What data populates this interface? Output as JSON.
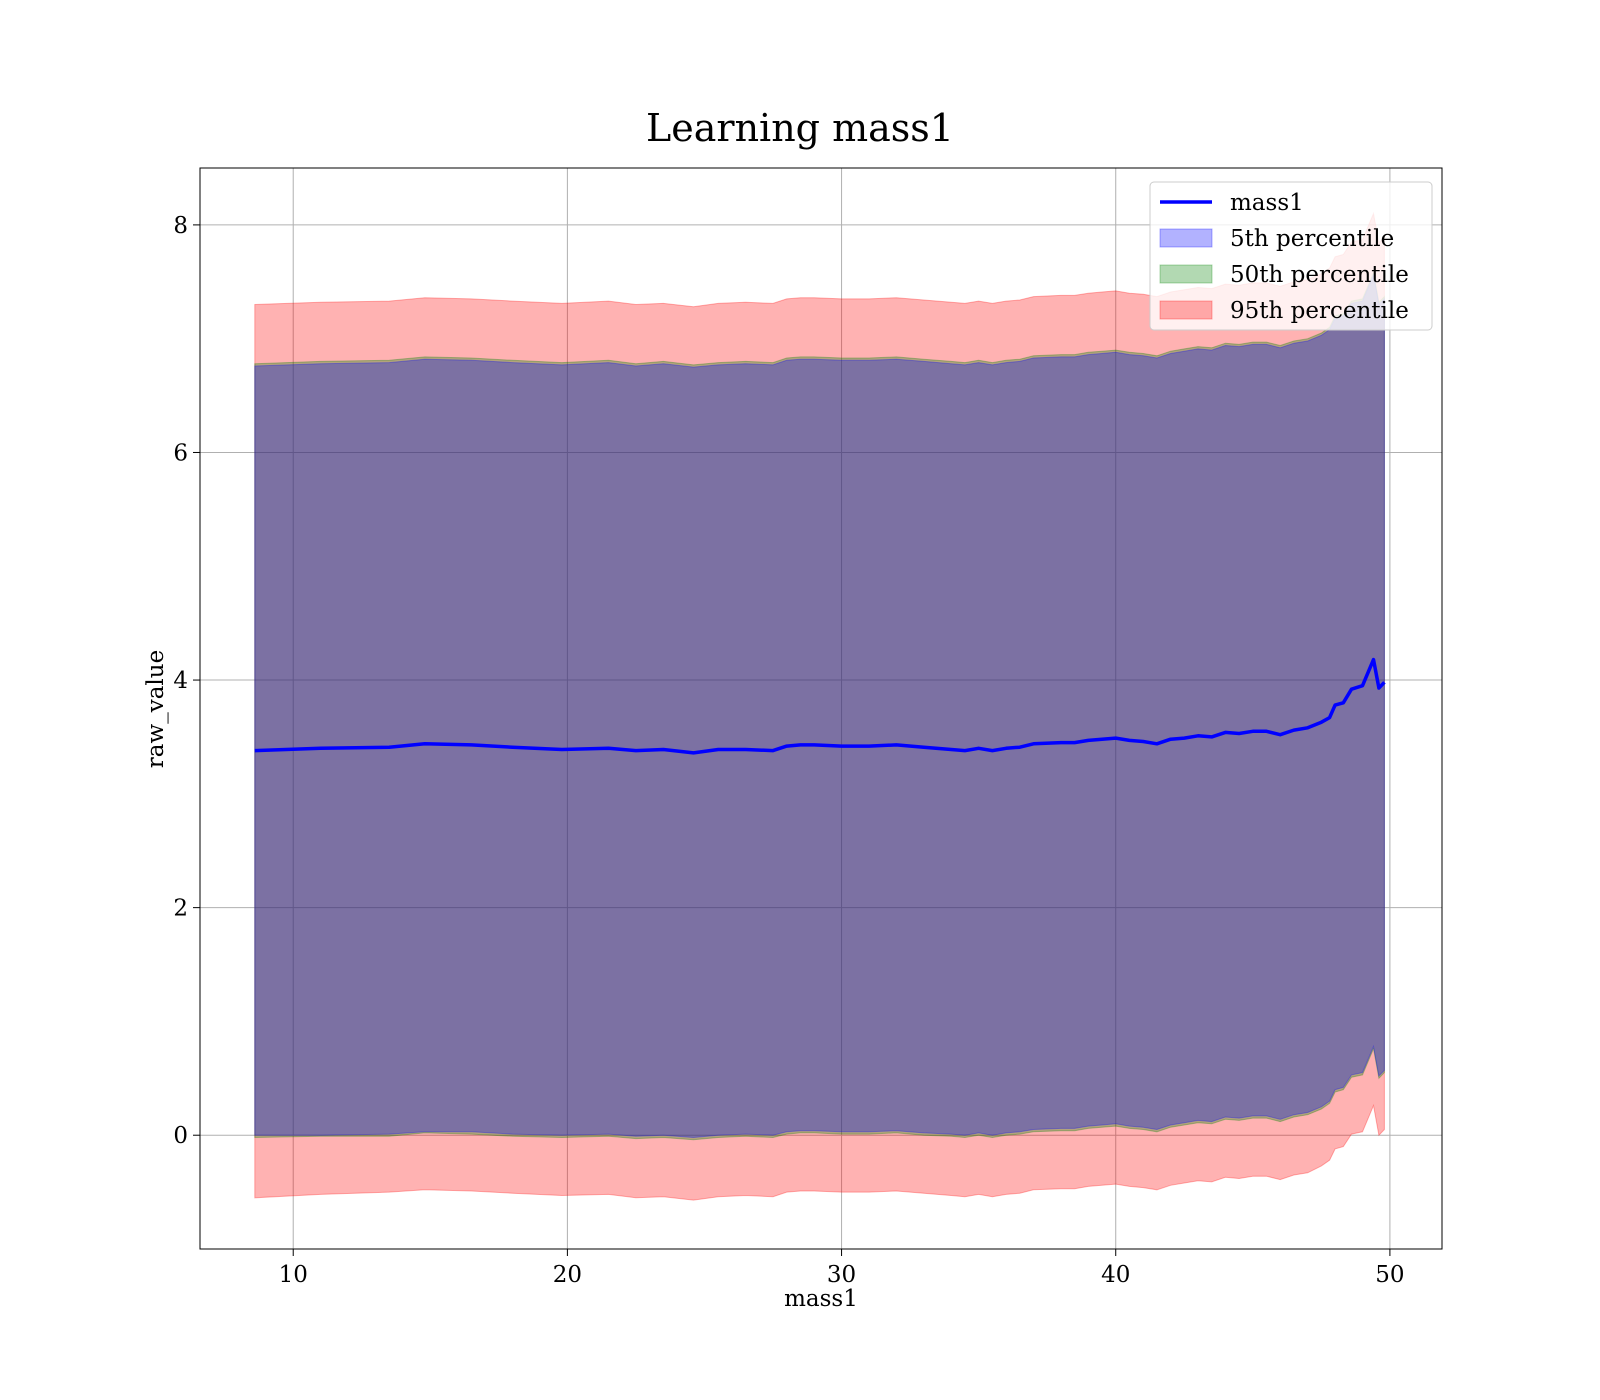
{
  "chart_data": {
    "type": "area",
    "title": "Learning mass1",
    "xlabel": "mass1",
    "ylabel": "raw_value",
    "xlim": [
      6.6,
      51.9
    ],
    "ylim": [
      -1.0,
      8.5
    ],
    "xticks": [
      10,
      20,
      30,
      40,
      50
    ],
    "yticks": [
      0,
      2,
      4,
      6,
      8
    ],
    "grid": true,
    "legend_position": "top-right",
    "x": [
      8.6,
      11.0,
      13.5,
      14.8,
      16.5,
      18.0,
      19.8,
      21.5,
      22.5,
      23.5,
      24.6,
      25.5,
      26.5,
      27.5,
      28.0,
      28.5,
      29.0,
      30.0,
      31.0,
      32.0,
      33.0,
      34.0,
      34.5,
      35.0,
      35.5,
      36.0,
      36.5,
      37.0,
      38.0,
      38.5,
      39.0,
      39.5,
      40.0,
      40.5,
      41.0,
      41.5,
      42.0,
      42.5,
      43.0,
      43.5,
      44.0,
      44.5,
      45.0,
      45.5,
      46.0,
      46.5,
      47.0,
      47.5,
      47.8,
      48.0,
      48.3,
      48.6,
      49.0,
      49.4,
      49.6,
      49.8
    ],
    "series": [
      {
        "name": "mass1",
        "kind": "line",
        "color": "#0000ff",
        "values": [
          3.38,
          3.4,
          3.41,
          3.44,
          3.43,
          3.41,
          3.39,
          3.4,
          3.38,
          3.39,
          3.36,
          3.39,
          3.39,
          3.38,
          3.42,
          3.43,
          3.43,
          3.42,
          3.42,
          3.43,
          3.41,
          3.39,
          3.38,
          3.4,
          3.38,
          3.4,
          3.41,
          3.44,
          3.45,
          3.45,
          3.47,
          3.48,
          3.49,
          3.47,
          3.46,
          3.44,
          3.48,
          3.49,
          3.51,
          3.5,
          3.54,
          3.53,
          3.55,
          3.55,
          3.52,
          3.56,
          3.58,
          3.63,
          3.67,
          3.78,
          3.8,
          3.92,
          3.95,
          4.18,
          3.93,
          3.98
        ]
      },
      {
        "name": "5th percentile",
        "kind": "band",
        "color": "#0000ff",
        "lower": [
          0.0,
          0.0,
          0.01,
          0.03,
          0.03,
          0.01,
          0.0,
          0.01,
          -0.01,
          0.0,
          -0.02,
          0.0,
          0.01,
          0.0,
          0.03,
          0.04,
          0.04,
          0.03,
          0.03,
          0.04,
          0.02,
          0.01,
          0.0,
          0.02,
          0.0,
          0.02,
          0.03,
          0.05,
          0.06,
          0.06,
          0.08,
          0.09,
          0.1,
          0.08,
          0.07,
          0.05,
          0.09,
          0.11,
          0.13,
          0.12,
          0.16,
          0.15,
          0.17,
          0.17,
          0.14,
          0.18,
          0.2,
          0.25,
          0.3,
          0.4,
          0.42,
          0.53,
          0.55,
          0.78,
          0.52,
          0.57
        ],
        "upper": [
          6.76,
          6.78,
          6.79,
          6.82,
          6.81,
          6.79,
          6.77,
          6.79,
          6.76,
          6.78,
          6.75,
          6.77,
          6.78,
          6.77,
          6.81,
          6.82,
          6.82,
          6.81,
          6.81,
          6.82,
          6.8,
          6.78,
          6.77,
          6.79,
          6.77,
          6.79,
          6.8,
          6.83,
          6.84,
          6.84,
          6.86,
          6.87,
          6.88,
          6.86,
          6.85,
          6.83,
          6.87,
          6.89,
          6.91,
          6.9,
          6.94,
          6.93,
          6.95,
          6.95,
          6.92,
          6.96,
          6.98,
          7.03,
          7.08,
          7.18,
          7.2,
          7.31,
          7.33,
          7.56,
          7.3,
          7.35
        ]
      },
      {
        "name": "50th percentile",
        "kind": "band",
        "color": "#008000",
        "lower": [
          -0.02,
          -0.01,
          -0.01,
          0.02,
          0.01,
          -0.01,
          -0.02,
          -0.01,
          -0.03,
          -0.02,
          -0.04,
          -0.02,
          -0.01,
          -0.02,
          0.01,
          0.02,
          0.02,
          0.01,
          0.01,
          0.02,
          0.0,
          -0.01,
          -0.02,
          0.0,
          -0.02,
          0.0,
          0.01,
          0.03,
          0.04,
          0.04,
          0.06,
          0.07,
          0.08,
          0.06,
          0.05,
          0.03,
          0.07,
          0.09,
          0.11,
          0.1,
          0.14,
          0.13,
          0.15,
          0.15,
          0.12,
          0.16,
          0.18,
          0.23,
          0.28,
          0.38,
          0.4,
          0.51,
          0.53,
          0.76,
          0.5,
          0.55
        ],
        "upper": [
          6.78,
          6.8,
          6.81,
          6.84,
          6.83,
          6.81,
          6.79,
          6.81,
          6.78,
          6.8,
          6.77,
          6.79,
          6.8,
          6.79,
          6.83,
          6.84,
          6.84,
          6.83,
          6.83,
          6.84,
          6.82,
          6.8,
          6.79,
          6.81,
          6.79,
          6.81,
          6.82,
          6.85,
          6.86,
          6.86,
          6.88,
          6.89,
          6.9,
          6.88,
          6.87,
          6.85,
          6.89,
          6.91,
          6.93,
          6.92,
          6.96,
          6.95,
          6.97,
          6.97,
          6.94,
          6.98,
          7.0,
          7.05,
          7.1,
          7.2,
          7.22,
          7.33,
          7.35,
          7.58,
          7.32,
          7.37
        ]
      },
      {
        "name": "95th percentile",
        "kind": "band",
        "color": "#ff0000",
        "lower": [
          -0.55,
          -0.52,
          -0.5,
          -0.48,
          -0.49,
          -0.51,
          -0.53,
          -0.52,
          -0.55,
          -0.54,
          -0.57,
          -0.54,
          -0.53,
          -0.54,
          -0.5,
          -0.49,
          -0.49,
          -0.5,
          -0.5,
          -0.49,
          -0.51,
          -0.53,
          -0.54,
          -0.52,
          -0.54,
          -0.52,
          -0.51,
          -0.48,
          -0.47,
          -0.47,
          -0.45,
          -0.44,
          -0.43,
          -0.45,
          -0.46,
          -0.48,
          -0.44,
          -0.42,
          -0.4,
          -0.41,
          -0.37,
          -0.38,
          -0.36,
          -0.36,
          -0.39,
          -0.35,
          -0.33,
          -0.27,
          -0.22,
          -0.12,
          -0.1,
          0.01,
          0.03,
          0.26,
          0.0,
          0.05
        ],
        "upper": [
          7.3,
          7.32,
          7.33,
          7.36,
          7.35,
          7.33,
          7.31,
          7.33,
          7.3,
          7.31,
          7.28,
          7.31,
          7.32,
          7.31,
          7.35,
          7.36,
          7.36,
          7.35,
          7.35,
          7.36,
          7.34,
          7.32,
          7.31,
          7.33,
          7.31,
          7.33,
          7.34,
          7.37,
          7.38,
          7.38,
          7.4,
          7.41,
          7.42,
          7.4,
          7.39,
          7.37,
          7.41,
          7.43,
          7.45,
          7.44,
          7.48,
          7.47,
          7.49,
          7.49,
          7.46,
          7.5,
          7.52,
          7.57,
          7.62,
          7.72,
          7.74,
          7.85,
          7.87,
          8.1,
          7.84,
          7.89
        ]
      }
    ]
  }
}
